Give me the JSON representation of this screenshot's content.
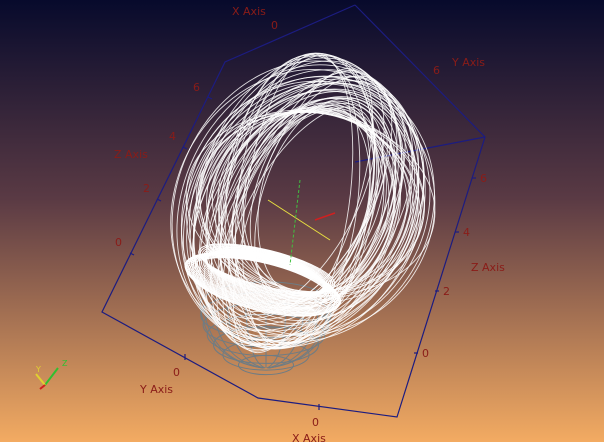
{
  "axes": [
    {
      "title": "X Axis",
      "ticks": [
        "0"
      ]
    },
    {
      "title": "Z Axis",
      "ticks": [
        "6",
        "4",
        "2",
        "0"
      ]
    },
    {
      "title": "Y Axis",
      "ticks": [
        "6"
      ]
    },
    {
      "title": "Z Axis",
      "ticks": [
        "6",
        "4",
        "2",
        "0"
      ]
    },
    {
      "title": "Y Axis",
      "ticks": [
        "0"
      ]
    },
    {
      "title": "X Axis",
      "ticks": [
        "0"
      ]
    }
  ],
  "orientation": {
    "labels": [
      "Y",
      "Z"
    ]
  }
}
